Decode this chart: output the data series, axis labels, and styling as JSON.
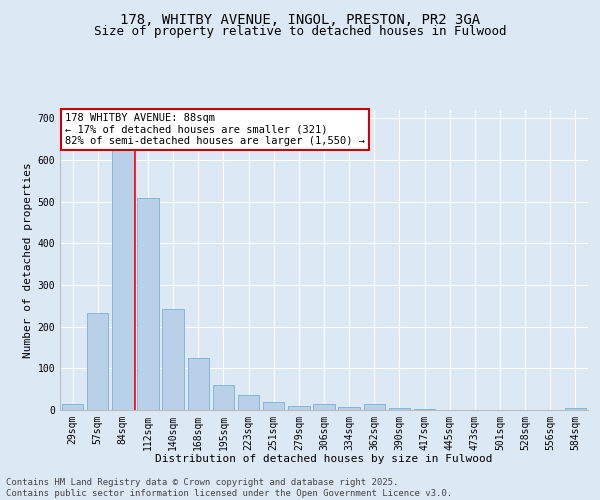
{
  "title_line1": "178, WHITBY AVENUE, INGOL, PRESTON, PR2 3GA",
  "title_line2": "Size of property relative to detached houses in Fulwood",
  "xlabel": "Distribution of detached houses by size in Fulwood",
  "ylabel": "Number of detached properties",
  "bar_color": "#b8d0e8",
  "bar_edge_color": "#7aafd4",
  "background_color": "#dce9f5",
  "plot_bg_color": "#dce9f5",
  "categories": [
    "29sqm",
    "57sqm",
    "84sqm",
    "112sqm",
    "140sqm",
    "168sqm",
    "195sqm",
    "223sqm",
    "251sqm",
    "279sqm",
    "306sqm",
    "334sqm",
    "362sqm",
    "390sqm",
    "417sqm",
    "445sqm",
    "473sqm",
    "501sqm",
    "528sqm",
    "556sqm",
    "584sqm"
  ],
  "values": [
    15,
    232,
    641,
    510,
    243,
    126,
    60,
    35,
    20,
    10,
    14,
    8,
    14,
    4,
    2,
    1,
    1,
    0,
    0,
    0,
    5
  ],
  "ylim": [
    0,
    720
  ],
  "yticks": [
    0,
    100,
    200,
    300,
    400,
    500,
    600,
    700
  ],
  "property_line_index": 2,
  "annotation_text": "178 WHITBY AVENUE: 88sqm\n← 17% of detached houses are smaller (321)\n82% of semi-detached houses are larger (1,550) →",
  "annotation_box_color": "#ffffff",
  "annotation_box_edge": "#cc0000",
  "footer_line1": "Contains HM Land Registry data © Crown copyright and database right 2025.",
  "footer_line2": "Contains public sector information licensed under the Open Government Licence v3.0.",
  "title_fontsize": 10,
  "subtitle_fontsize": 9,
  "label_fontsize": 8,
  "tick_fontsize": 7,
  "footer_fontsize": 6.5,
  "ann_fontsize": 7.5
}
